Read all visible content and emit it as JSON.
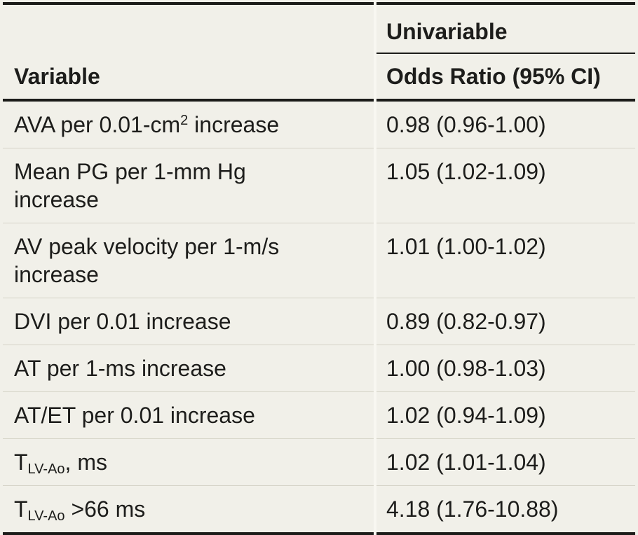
{
  "table": {
    "column_group_header": "Univariable",
    "columns": {
      "variable": "Variable",
      "odds_ratio": "Odds Ratio (95% CI)"
    },
    "rows": [
      {
        "variable_text": "AVA per 0.01-cm² increase",
        "variable_parts": [
          {
            "text": "AVA per 0.01-cm"
          },
          {
            "text": "2",
            "script": "sup"
          },
          {
            "text": " increase"
          }
        ],
        "odds_ratio": "0.98 (0.96-1.00)"
      },
      {
        "variable_text": "Mean PG per 1-mm Hg increase",
        "variable_parts": [
          {
            "text": "Mean PG per 1-mm Hg"
          },
          {
            "script": "break"
          },
          {
            "text": "increase"
          }
        ],
        "odds_ratio": "1.05 (1.02-1.09)"
      },
      {
        "variable_text": "AV peak velocity per 1-m/s increase",
        "variable_parts": [
          {
            "text": "AV peak velocity per 1-m/s"
          },
          {
            "script": "break"
          },
          {
            "text": "increase"
          }
        ],
        "odds_ratio": "1.01 (1.00-1.02)"
      },
      {
        "variable_text": "DVI per 0.01 increase",
        "variable_parts": [
          {
            "text": "DVI per 0.01 increase"
          }
        ],
        "odds_ratio": "0.89 (0.82-0.97)"
      },
      {
        "variable_text": "AT per 1-ms increase",
        "variable_parts": [
          {
            "text": "AT per 1-ms increase"
          }
        ],
        "odds_ratio": "1.00 (0.98-1.03)"
      },
      {
        "variable_text": "AT/ET per 0.01 increase",
        "variable_parts": [
          {
            "text": "AT/ET per 0.01 increase"
          }
        ],
        "odds_ratio": "1.02 (0.94-1.09)"
      },
      {
        "variable_text": "T(LV-Ao), ms",
        "variable_parts": [
          {
            "text": "T"
          },
          {
            "text": "LV-Ao",
            "script": "sub"
          },
          {
            "text": ", ms"
          }
        ],
        "odds_ratio": "1.02 (1.01-1.04)"
      },
      {
        "variable_text": "T(LV-Ao) >66 ms",
        "variable_parts": [
          {
            "text": "T"
          },
          {
            "text": "LV-Ao",
            "script": "sub"
          },
          {
            "text": " >66 ms"
          }
        ],
        "odds_ratio": "4.18 (1.76-10.88)"
      }
    ]
  },
  "colors": {
    "background": "#f1f0e9",
    "heavy_rule": "#1c1c19",
    "row_divider": "#d5d3c7",
    "text": "#1d1d1b"
  }
}
